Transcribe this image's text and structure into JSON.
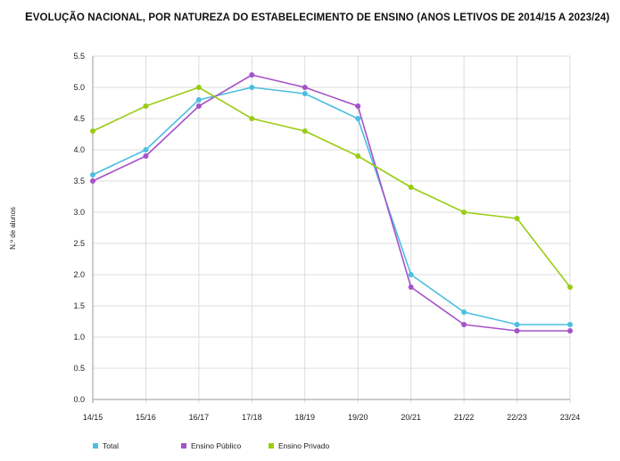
{
  "chart_data": {
    "type": "line",
    "title": "Evolução nacional, por natureza do estabelecimento de ensino (anos letivos de 2014/15 a 2023/24)",
    "ylabel": "N.º de alunos",
    "xlabel": "",
    "categories": [
      "14/15",
      "15/16",
      "16/17",
      "17/18",
      "18/19",
      "19/20",
      "20/21",
      "21/22",
      "22/23",
      "23/24"
    ],
    "ylim": [
      0,
      5.5
    ],
    "yticks": [
      "0.0",
      "0.5",
      "1.0",
      "1.5",
      "2.0",
      "2.5",
      "3.0",
      "3.5",
      "4.0",
      "4.5",
      "5.0",
      "5.5"
    ],
    "grid": true,
    "legend_position": "bottom",
    "series": [
      {
        "name": "Total",
        "color": "#4bbfe0",
        "values": [
          3.6,
          4.0,
          4.8,
          5.0,
          4.9,
          4.5,
          2.0,
          1.4,
          1.2,
          1.2
        ]
      },
      {
        "name": "Ensino Público",
        "color": "#a552c8",
        "values": [
          3.5,
          3.9,
          4.7,
          5.2,
          5.0,
          4.7,
          1.8,
          1.2,
          1.1,
          1.1
        ]
      },
      {
        "name": "Ensino Privado",
        "color": "#9acc14",
        "values": [
          4.3,
          4.7,
          5.0,
          4.5,
          4.3,
          3.9,
          3.4,
          3.0,
          2.9,
          1.8
        ]
      }
    ]
  }
}
